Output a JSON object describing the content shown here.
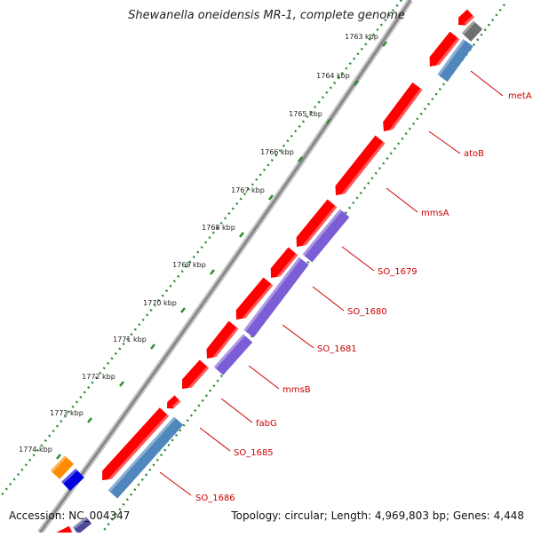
{
  "title": "Shewanella oneidensis MR-1, complete genome",
  "footer": {
    "accession": "Accession: NC_004347",
    "topology": "Topology: circular; Length: 4,969,803 bp; Genes: 4,448"
  },
  "colors": {
    "backbone": "#888888",
    "forward_strand": "#ff0000",
    "reverse_strand_blue": "#4f87bd",
    "reverse_strand_purple": "#7b5ed6",
    "reverse_strand_gray": "#707070",
    "tick_dots": "#2e8b2e",
    "label_text": "#cc0000",
    "orange_feature": "#ff8c00",
    "blue_feature": "#0000dd"
  },
  "ticks": [
    {
      "label": "1763 kbp"
    },
    {
      "label": "1764 kbp"
    },
    {
      "label": "1765 kbp"
    },
    {
      "label": "1766 kbp"
    },
    {
      "label": "1767 kbp"
    },
    {
      "label": "1768 kbp"
    },
    {
      "label": "1769 kbp"
    },
    {
      "label": "1770 kbp"
    },
    {
      "label": "1771 kbp"
    },
    {
      "label": "1772 kbp"
    },
    {
      "label": "1773 kbp"
    },
    {
      "label": "1774 kbp"
    }
  ],
  "gene_labels": [
    {
      "label": "metA"
    },
    {
      "label": "atoB"
    },
    {
      "label": "mmsA"
    },
    {
      "label": "SO_1679"
    },
    {
      "label": "SO_1680"
    },
    {
      "label": "SO_1681"
    },
    {
      "label": "mmsB"
    },
    {
      "label": "fabG"
    },
    {
      "label": "SO_1685"
    },
    {
      "label": "SO_1686"
    }
  ]
}
